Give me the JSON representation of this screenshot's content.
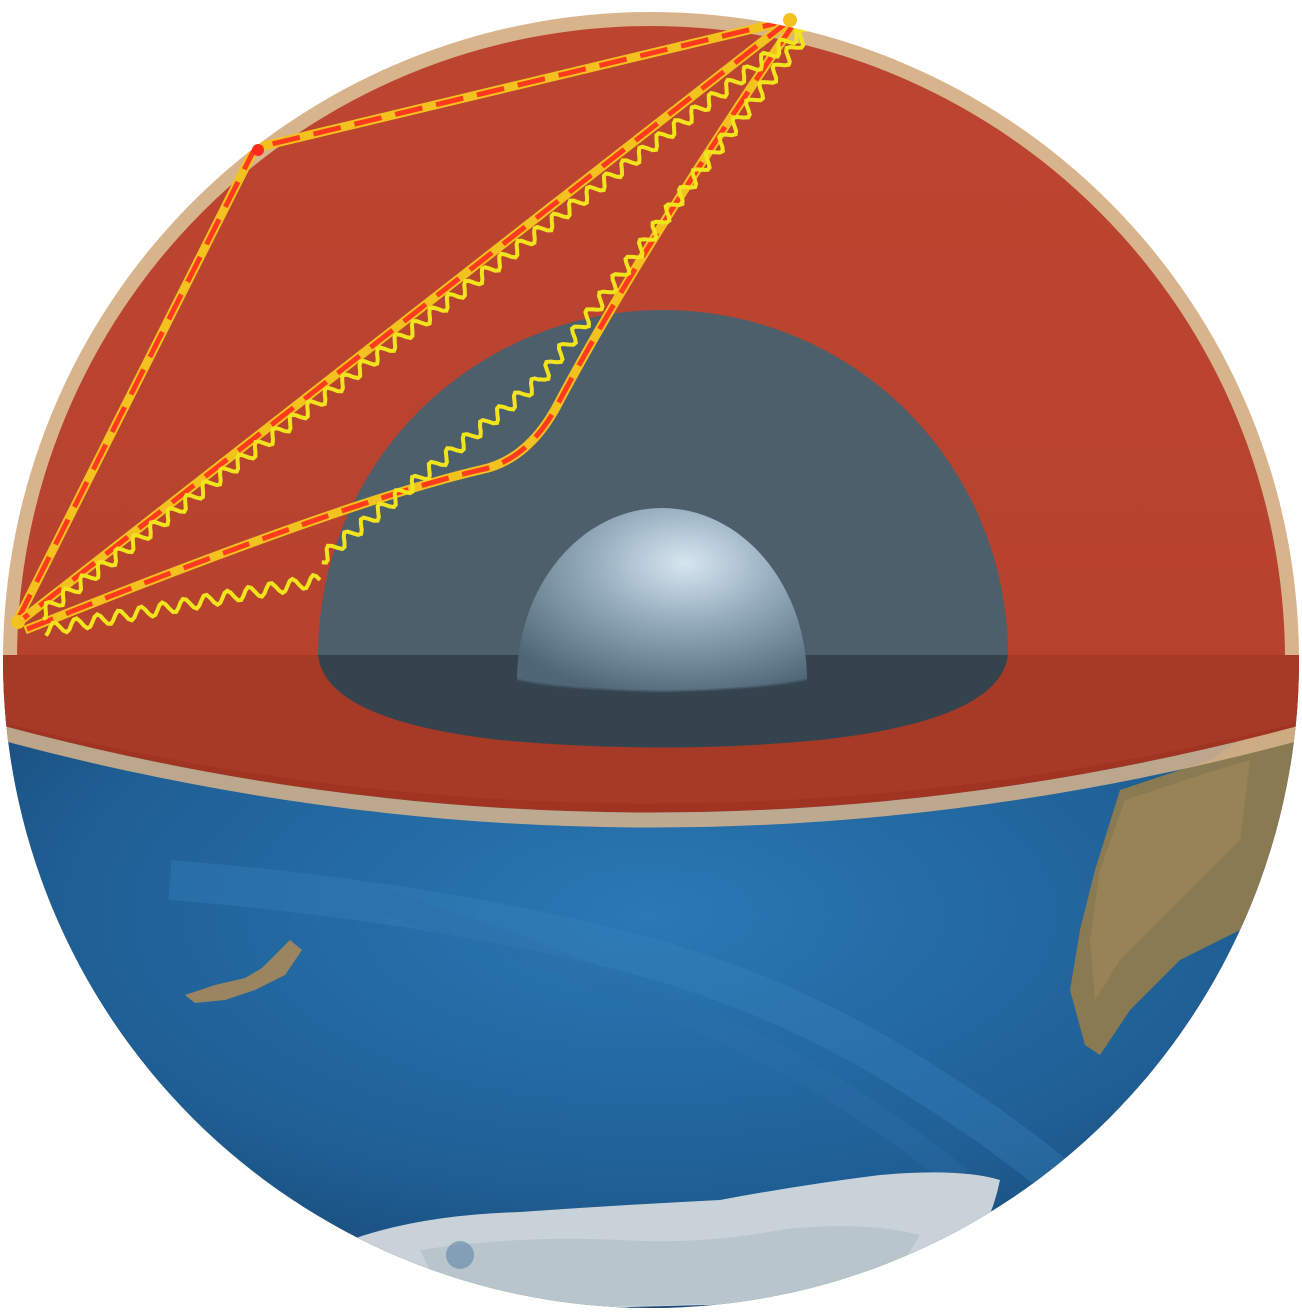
{
  "diagram": {
    "subject": "earth-interior-cutaway",
    "layers": [
      "crust",
      "mantle",
      "outer-core",
      "inner-core"
    ],
    "wave_types": [
      "p-wave",
      "s-wave"
    ],
    "colors": {
      "background": "#ffffff",
      "crust": "#d8b48c",
      "mantle": "#b8432e",
      "mantle_shadow": "#9e3320",
      "outer_core": "#4e5f6c",
      "outer_core_shadow": "#35434f",
      "inner_core_light": "#d6e6f0",
      "inner_core_dark": "#5f7585",
      "ocean": "#1f5f95",
      "ocean_light": "#3f88c0",
      "land": "#8a7a52",
      "ice": "#c8d2d8",
      "p_wave_dash": "#ff3a1e",
      "p_wave_base": "#f4c21f",
      "s_wave": "#f2e41c"
    }
  }
}
